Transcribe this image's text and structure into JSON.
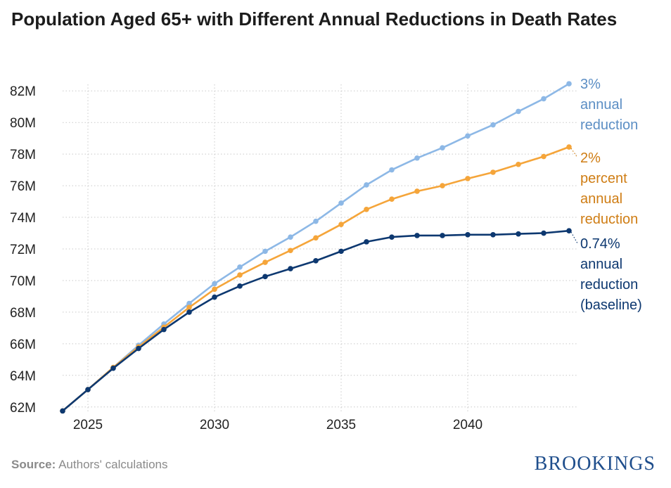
{
  "chart_data": {
    "type": "line",
    "title": "Population Aged 65+ with Different Annual Reductions in Death Rates",
    "xlabel": "",
    "ylabel": "",
    "x": [
      2024,
      2025,
      2026,
      2027,
      2028,
      2029,
      2030,
      2031,
      2032,
      2033,
      2034,
      2035,
      2036,
      2037,
      2038,
      2039,
      2040,
      2041,
      2042,
      2043,
      2044
    ],
    "xlim": [
      2024,
      2044
    ],
    "ylim": [
      61.5,
      82.5
    ],
    "x_ticks": [
      2025,
      2030,
      2035,
      2040
    ],
    "x_tick_labels": [
      "2025",
      "2030",
      "2035",
      "2040"
    ],
    "y_ticks": [
      62,
      64,
      66,
      68,
      70,
      72,
      74,
      76,
      78,
      80,
      82
    ],
    "y_tick_labels": [
      "62M",
      "64M",
      "66M",
      "68M",
      "70M",
      "72M",
      "74M",
      "76M",
      "78M",
      "80M",
      "82M"
    ],
    "grid": true,
    "series": [
      {
        "name": "3% annual reduction",
        "label_lines": [
          "3%",
          "annual",
          "reduction"
        ],
        "color": "#8db8e6",
        "label_color": "#5b8ec4",
        "values": [
          61.75,
          63.1,
          64.5,
          65.9,
          67.25,
          68.55,
          69.8,
          70.85,
          71.85,
          72.75,
          73.75,
          74.9,
          76.05,
          77.0,
          77.75,
          78.4,
          79.15,
          79.85,
          80.7,
          81.5,
          82.45
        ]
      },
      {
        "name": "2% percent annual reduction",
        "label_lines": [
          "2%",
          "percent",
          "annual",
          "reduction"
        ],
        "color": "#f5a53a",
        "label_color": "#cf7d14",
        "values": [
          61.75,
          63.1,
          64.5,
          65.8,
          67.05,
          68.3,
          69.45,
          70.35,
          71.15,
          71.9,
          72.7,
          73.55,
          74.5,
          75.15,
          75.65,
          76.0,
          76.45,
          76.85,
          77.35,
          77.85,
          78.45
        ]
      },
      {
        "name": "0.74% annual reduction (baseline)",
        "label_lines": [
          "0.74%",
          "annual",
          "reduction",
          "(baseline)"
        ],
        "color": "#0d3870",
        "label_color": "#0d3870",
        "values": [
          61.75,
          63.1,
          64.45,
          65.7,
          66.9,
          68.0,
          68.95,
          69.65,
          70.25,
          70.75,
          71.25,
          71.85,
          72.45,
          72.75,
          72.85,
          72.85,
          72.9,
          72.9,
          72.95,
          73.0,
          73.15
        ]
      }
    ]
  },
  "footer": {
    "source_label": "Source:",
    "source_text": "Authors' calculations",
    "brand": "BROOKINGS"
  }
}
